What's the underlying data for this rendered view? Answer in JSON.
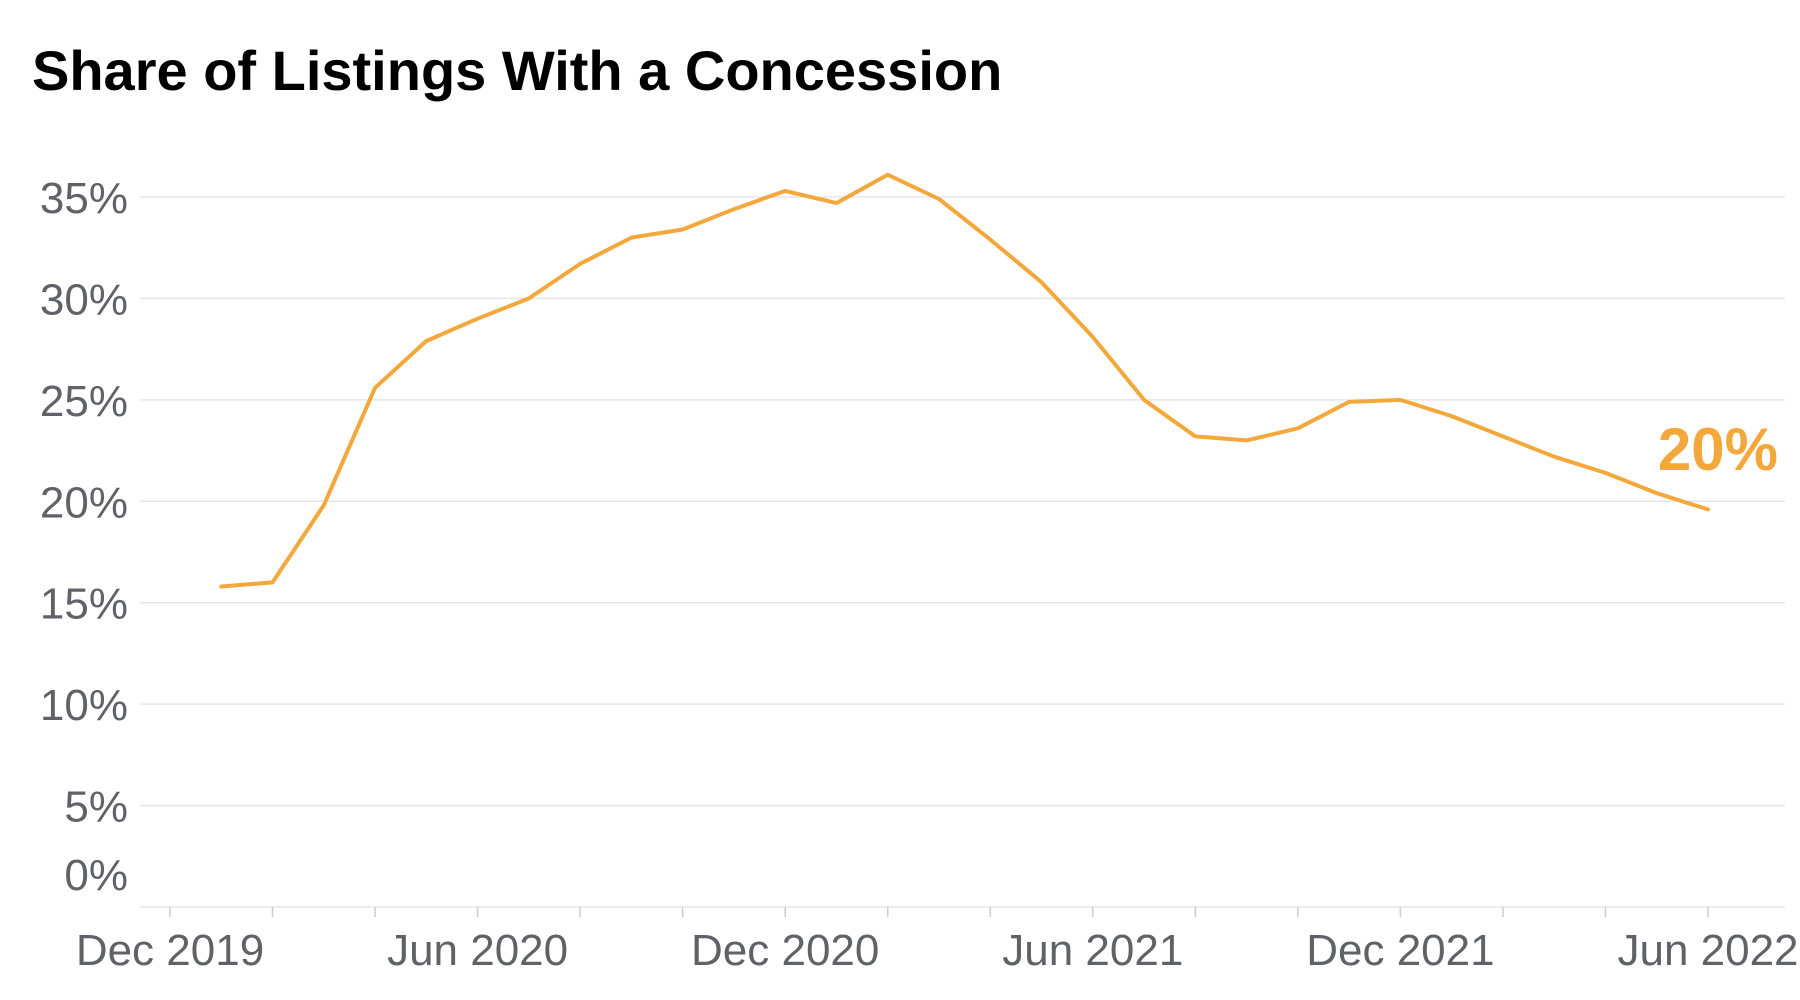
{
  "title": "Share of Listings With a Concession",
  "colors": {
    "line": "#F4A83C",
    "grid": "#e6e6e6",
    "axis": "#cccccc",
    "tick_text": "#5f6368"
  },
  "chart_data": {
    "type": "line",
    "title": "Share of Listings With a Concession",
    "xlabel": "",
    "ylabel": "",
    "ylim": [
      0,
      37
    ],
    "y_ticks": [
      "0%",
      "5%",
      "10%",
      "15%",
      "20%",
      "25%",
      "30%",
      "35%"
    ],
    "y_tick_values": [
      0,
      5,
      10,
      15,
      20,
      25,
      30,
      35
    ],
    "x_tick_labels": [
      {
        "date": "2019-12",
        "label": "Dec 2019"
      },
      {
        "date": "2020-06",
        "label": "Jun 2020"
      },
      {
        "date": "2020-12",
        "label": "Dec 2020"
      },
      {
        "date": "2021-06",
        "label": "Jun 2021"
      },
      {
        "date": "2021-12",
        "label": "Dec 2021"
      },
      {
        "date": "2022-06",
        "label": "Jun 2022"
      }
    ],
    "grid": true,
    "end_label": "20%",
    "x": [
      "2020-01",
      "2020-02",
      "2020-03",
      "2020-04",
      "2020-05",
      "2020-06",
      "2020-07",
      "2020-08",
      "2020-09",
      "2020-10",
      "2020-11",
      "2020-12",
      "2021-01",
      "2021-02",
      "2021-03",
      "2021-04",
      "2021-05",
      "2021-06",
      "2021-07",
      "2021-08",
      "2021-09",
      "2021-10",
      "2021-11",
      "2021-12",
      "2022-01",
      "2022-02",
      "2022-03",
      "2022-04",
      "2022-05",
      "2022-06"
    ],
    "series": [
      {
        "values": [
          15.8,
          16.0,
          19.8,
          25.6,
          27.9,
          29.0,
          30.0,
          31.7,
          33.0,
          33.4,
          34.4,
          35.3,
          34.7,
          36.1,
          34.9,
          32.9,
          30.8,
          28.1,
          25.0,
          23.2,
          23.0,
          23.6,
          24.9,
          25.0,
          24.2,
          23.2,
          22.2,
          21.4,
          20.4,
          19.6
        ]
      }
    ]
  }
}
